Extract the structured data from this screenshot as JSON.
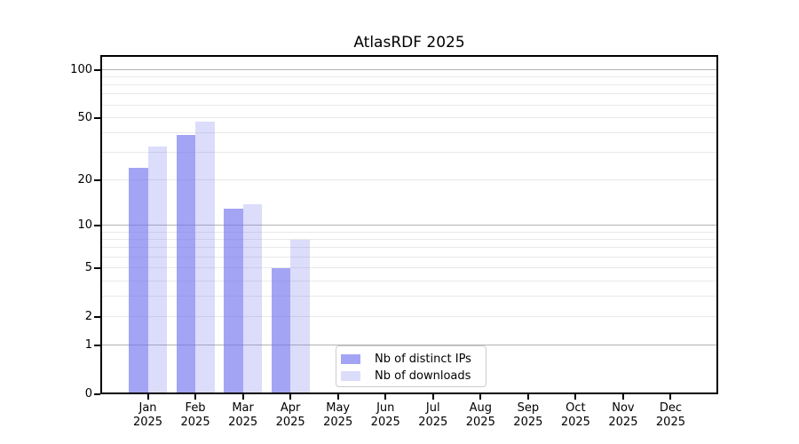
{
  "chart_data": {
    "type": "bar",
    "title": "AtlasRDF 2025",
    "categories": [
      "Jan",
      "Feb",
      "Mar",
      "Apr",
      "May",
      "Jun",
      "Jul",
      "Aug",
      "Sep",
      "Oct",
      "Nov",
      "Dec"
    ],
    "year_label": "2025",
    "series": [
      {
        "name": "Nb of distinct IPs",
        "color": "rgba(115,115,240,0.65)",
        "values": [
          24,
          39,
          13,
          5,
          null,
          null,
          null,
          null,
          null,
          null,
          null,
          null
        ]
      },
      {
        "name": "Nb of downloads",
        "color": "rgba(115,115,240,0.25)",
        "values": [
          33,
          47,
          14,
          8,
          null,
          null,
          null,
          null,
          null,
          null,
          null,
          null
        ]
      }
    ],
    "xlabel": "",
    "ylabel": "",
    "yscale": "symlog (position proportional to log10(1+value))",
    "ylim": [
      0,
      123.5
    ],
    "yticks": [
      0,
      1,
      2,
      5,
      10,
      20,
      50,
      100
    ],
    "gridlines": {
      "major": [
        1,
        10,
        100
      ],
      "minor": [
        2,
        3,
        4,
        5,
        6,
        7,
        8,
        9,
        20,
        30,
        40,
        50,
        60,
        70,
        80,
        90
      ]
    },
    "legend": {
      "position": "lower center",
      "labels": [
        "Nb of distinct IPs",
        "Nb of downloads"
      ]
    },
    "colors": {
      "major_grid": "#b2b2b2",
      "minor_grid": "#e9e9e9",
      "spine": "#000000",
      "background": "#ffffff",
      "text": "#000000"
    }
  }
}
